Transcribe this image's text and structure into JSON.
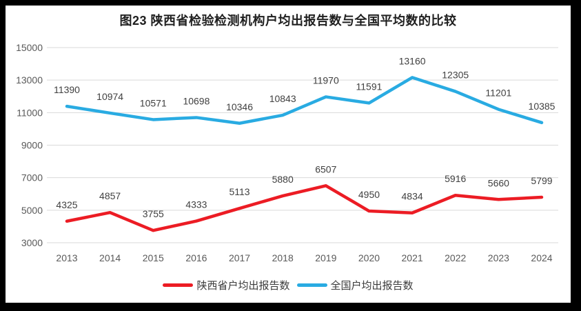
{
  "chart_data": {
    "type": "line",
    "title": "图23 陕西省检验检测机构户均出报告数与全国平均数的比较",
    "categories": [
      "2013",
      "2014",
      "2015",
      "2016",
      "2017",
      "2018",
      "2019",
      "2020",
      "2021",
      "2022",
      "2023",
      "2024"
    ],
    "series": [
      {
        "name": "陕西省户均出报告数",
        "color": "#EC1C24",
        "values": [
          4325,
          4857,
          3755,
          4333,
          5113,
          5880,
          6507,
          4950,
          4834,
          5916,
          5660,
          5799
        ]
      },
      {
        "name": "全国户均出报告数",
        "color": "#29ABE2",
        "values": [
          11390,
          10974,
          10571,
          10698,
          10346,
          10843,
          11970,
          11591,
          13160,
          12305,
          11201,
          10385
        ]
      }
    ],
    "ylim": [
      3000,
      15000
    ],
    "yticks": [
      15000,
      13000,
      11000,
      9000,
      7000,
      5000,
      3000
    ],
    "xlabel": "",
    "ylabel": "",
    "grid": "horizontal-only",
    "legend_position": "bottom",
    "data_labels": "above-points"
  },
  "style": {
    "frame_color": "#000000",
    "background": "#FFFFFF",
    "grid_color": "#D9D9D9",
    "axis_text_color": "#595959",
    "data_label_color": "#404040",
    "title_color": "#1F1F1F",
    "legend_text_color": "#3A3A3A"
  }
}
